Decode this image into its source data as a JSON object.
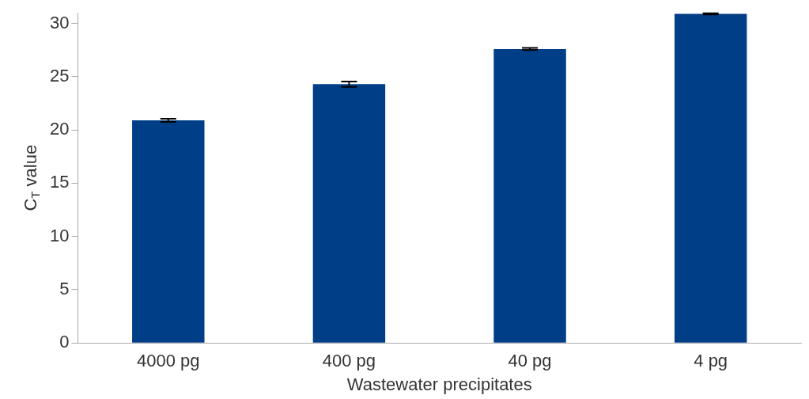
{
  "chart_data": {
    "type": "bar",
    "xlabel": "Wastewater precipitates",
    "ylabel": "C$_{T}$ value",
    "categories": [
      "4000 pg",
      "400 pg",
      "40 pg",
      "4 pg"
    ],
    "values": [
      20.9,
      24.3,
      27.6,
      30.9
    ],
    "errors": [
      0.15,
      0.25,
      0.1,
      0.05
    ],
    "color": "#003f87",
    "ylim": [
      0,
      31
    ],
    "yticks": [
      0,
      5,
      10,
      15,
      20,
      25,
      30
    ],
    "grid": false,
    "legend": false
  }
}
